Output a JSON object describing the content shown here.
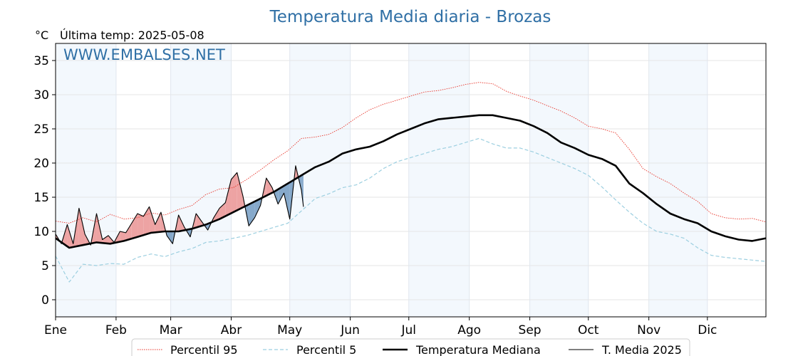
{
  "chart_data": {
    "type": "line",
    "title": "Temperatura Media diaria - Brozas",
    "unit_label": "°C",
    "last_temp_label": "Última temp: 2025-05-08",
    "watermark": "WWW.EMBALSES.NET",
    "xlabel": "",
    "ylabel": "",
    "x_unit": "day of year",
    "xlim": [
      1,
      365
    ],
    "ylim": [
      -2.5,
      37.5
    ],
    "yticks": [
      0,
      5,
      10,
      15,
      20,
      25,
      30,
      35
    ],
    "month_labels": [
      "Ene",
      "Feb",
      "Mar",
      "Abr",
      "May",
      "Jun",
      "Jul",
      "Ago",
      "Sep",
      "Oct",
      "Nov",
      "Dic"
    ],
    "month_starts": [
      1,
      32,
      60,
      91,
      121,
      152,
      182,
      213,
      244,
      274,
      305,
      335
    ],
    "legend_position": "bottom",
    "grid": true,
    "series": [
      {
        "name": "Percentil 95",
        "color": "#e8352a",
        "style": "dotted",
        "x": [
          1,
          8,
          15,
          22,
          29,
          36,
          43,
          50,
          57,
          64,
          71,
          78,
          85,
          92,
          99,
          106,
          113,
          120,
          127,
          134,
          141,
          148,
          155,
          162,
          169,
          176,
          183,
          190,
          197,
          204,
          211,
          218,
          225,
          232,
          239,
          246,
          253,
          260,
          267,
          274,
          281,
          288,
          295,
          302,
          309,
          316,
          323,
          330,
          337,
          344,
          351,
          358,
          365
        ],
        "values": [
          11.5,
          11.2,
          12.0,
          11.4,
          12.5,
          11.8,
          12.0,
          12.7,
          12.4,
          13.2,
          13.8,
          15.4,
          16.2,
          16.4,
          17.6,
          19.0,
          20.5,
          21.8,
          23.6,
          23.8,
          24.2,
          25.2,
          26.6,
          27.8,
          28.6,
          29.2,
          29.8,
          30.4,
          30.6,
          31.0,
          31.5,
          31.8,
          31.6,
          30.5,
          29.8,
          29.2,
          28.4,
          27.6,
          26.6,
          25.4,
          25.0,
          24.4,
          22.0,
          19.2,
          18.0,
          17.0,
          15.6,
          14.4,
          12.6,
          12.0,
          11.8,
          11.9,
          11.4
        ]
      },
      {
        "name": "Percentil 5",
        "color": "#9ccfe0",
        "style": "dashed",
        "x": [
          1,
          8,
          15,
          22,
          29,
          36,
          43,
          50,
          57,
          64,
          71,
          78,
          85,
          92,
          99,
          106,
          113,
          120,
          127,
          134,
          141,
          148,
          155,
          162,
          169,
          176,
          183,
          190,
          197,
          204,
          211,
          218,
          225,
          232,
          239,
          246,
          253,
          260,
          267,
          274,
          281,
          288,
          295,
          302,
          309,
          316,
          323,
          330,
          337,
          344,
          351,
          358,
          365
        ],
        "values": [
          6.4,
          2.6,
          5.2,
          5.0,
          5.3,
          5.2,
          6.2,
          6.7,
          6.3,
          7.0,
          7.5,
          8.4,
          8.6,
          9.0,
          9.4,
          10.0,
          10.6,
          11.2,
          13.0,
          14.8,
          15.5,
          16.4,
          16.8,
          17.8,
          19.2,
          20.2,
          20.8,
          21.4,
          22.0,
          22.4,
          23.0,
          23.6,
          22.8,
          22.2,
          22.2,
          21.6,
          20.8,
          20.0,
          19.2,
          18.2,
          16.5,
          14.6,
          12.8,
          11.2,
          10.0,
          9.6,
          9.0,
          7.6,
          6.5,
          6.2,
          6.0,
          5.8,
          5.6
        ]
      },
      {
        "name": "Temperatura Mediana",
        "color": "#000000",
        "style": "bold",
        "x": [
          1,
          8,
          15,
          22,
          29,
          36,
          43,
          50,
          57,
          64,
          71,
          78,
          85,
          92,
          99,
          106,
          113,
          120,
          127,
          134,
          141,
          148,
          155,
          162,
          169,
          176,
          183,
          190,
          197,
          204,
          211,
          218,
          225,
          232,
          239,
          246,
          253,
          260,
          267,
          274,
          281,
          288,
          295,
          302,
          309,
          316,
          323,
          330,
          337,
          344,
          351,
          358,
          365
        ],
        "values": [
          9.0,
          7.6,
          8.0,
          8.4,
          8.2,
          8.6,
          9.2,
          9.8,
          10.0,
          10.0,
          10.4,
          11.0,
          11.8,
          12.8,
          13.8,
          14.8,
          15.8,
          17.0,
          18.2,
          19.4,
          20.2,
          21.4,
          22.0,
          22.4,
          23.2,
          24.2,
          25.0,
          25.8,
          26.4,
          26.6,
          26.8,
          27.0,
          27.0,
          26.6,
          26.2,
          25.4,
          24.4,
          23.0,
          22.2,
          21.2,
          20.6,
          19.6,
          17.0,
          15.6,
          14.0,
          12.6,
          11.8,
          11.2,
          10.0,
          9.3,
          8.8,
          8.6,
          9.0
        ]
      },
      {
        "name": "T. Media 2025",
        "color": "#000000",
        "style": "solid",
        "x": [
          1,
          4,
          7,
          10,
          13,
          16,
          19,
          22,
          25,
          28,
          31,
          34,
          37,
          40,
          43,
          46,
          49,
          52,
          55,
          58,
          61,
          64,
          67,
          70,
          73,
          76,
          79,
          82,
          85,
          88,
          91,
          94,
          97,
          100,
          103,
          106,
          109,
          112,
          115,
          118,
          121,
          124,
          127,
          128
        ],
        "values": [
          9.6,
          8.2,
          11.0,
          8.2,
          13.4,
          9.6,
          8.0,
          12.6,
          8.8,
          9.4,
          8.4,
          10.0,
          9.8,
          11.2,
          12.6,
          12.2,
          13.6,
          11.0,
          12.8,
          9.4,
          8.2,
          12.4,
          10.6,
          9.2,
          12.6,
          11.4,
          10.2,
          12.0,
          13.4,
          14.2,
          17.6,
          18.6,
          15.2,
          10.8,
          12.0,
          13.8,
          17.8,
          16.4,
          14.0,
          15.6,
          11.8,
          19.6,
          16.0,
          13.6
        ]
      }
    ]
  }
}
